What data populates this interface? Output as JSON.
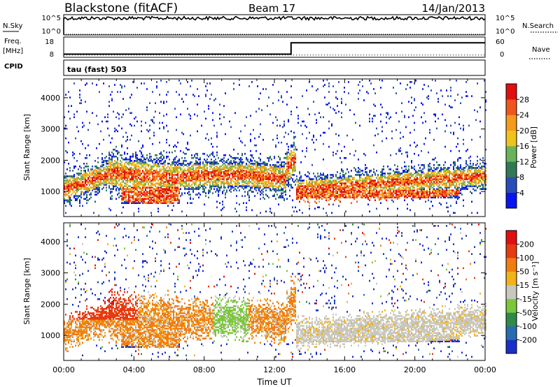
{
  "header": {
    "station": "Blackstone (fitACF)",
    "beam": "Beam 17",
    "date": "14/Jan/2013"
  },
  "chart_data": [
    {
      "type": "line",
      "panel": "nsky",
      "left_label": "N.Sky",
      "right_label": "N.Search",
      "left_ticks": [
        "10^5",
        "10^0"
      ],
      "right_ticks": [
        "10^5",
        "10^0"
      ],
      "nsky_level": 0.85,
      "nsearch_level": 0.0
    },
    {
      "type": "line",
      "panel": "freq",
      "left_label_1": "Freq.",
      "left_label_2": "[MHz]",
      "right_label": "Nave",
      "left_ticks": [
        "18",
        "8"
      ],
      "right_ticks": [
        "60",
        "0"
      ],
      "ylim_left": [
        8,
        18
      ],
      "ylim_right": [
        0,
        60
      ],
      "freq_steps": [
        [
          0,
          9.3
        ],
        [
          12.95,
          9.3
        ],
        [
          12.95,
          15.3
        ],
        [
          24,
          15.3
        ]
      ],
      "nave_level": 5
    },
    {
      "type": "text",
      "panel": "cpid",
      "left_label": "CPID",
      "program": "tau (fast) 503"
    },
    {
      "type": "heatmap",
      "panel": "power",
      "ylabel": "Slant Range [km]",
      "yticks": [
        1000,
        2000,
        3000,
        4000
      ],
      "ylim": [
        200,
        4600
      ],
      "xlim": [
        0,
        24
      ],
      "colorbar_label": "Power [dB]",
      "colorbar_ticks": [
        "28",
        "24",
        "20",
        "16",
        "12",
        "8",
        "4"
      ],
      "colors": [
        "#0a14f0",
        "#2a4cb8",
        "#2f7a55",
        "#6ab35a",
        "#f0c21c",
        "#f59a1a",
        "#f0561c",
        "#e01010"
      ]
    },
    {
      "type": "heatmap",
      "panel": "velocity",
      "ylabel": "Slant Range [km]",
      "yticks": [
        1000,
        2000,
        3000,
        4000
      ],
      "ylim": [
        200,
        4600
      ],
      "xlim": [
        0,
        24
      ],
      "xticks": [
        "00:00",
        "04:00",
        "08:00",
        "12:00",
        "16:00",
        "20:00",
        "00:00"
      ],
      "xlabel": "Time UT",
      "colorbar_label": "Velocity [m s⁻¹]",
      "colorbar_ticks": [
        "200",
        "100",
        "50",
        "15",
        "-15",
        "-50",
        "-100",
        "-200"
      ],
      "colors": [
        "#1a2fc8",
        "#2a6ab0",
        "#2f8a4a",
        "#7ac83a",
        "#c8c8c0",
        "#f2b21a",
        "#f07d12",
        "#e83a10",
        "#e01010"
      ],
      "ground_scatter_color": "#c8c8c0"
    }
  ]
}
